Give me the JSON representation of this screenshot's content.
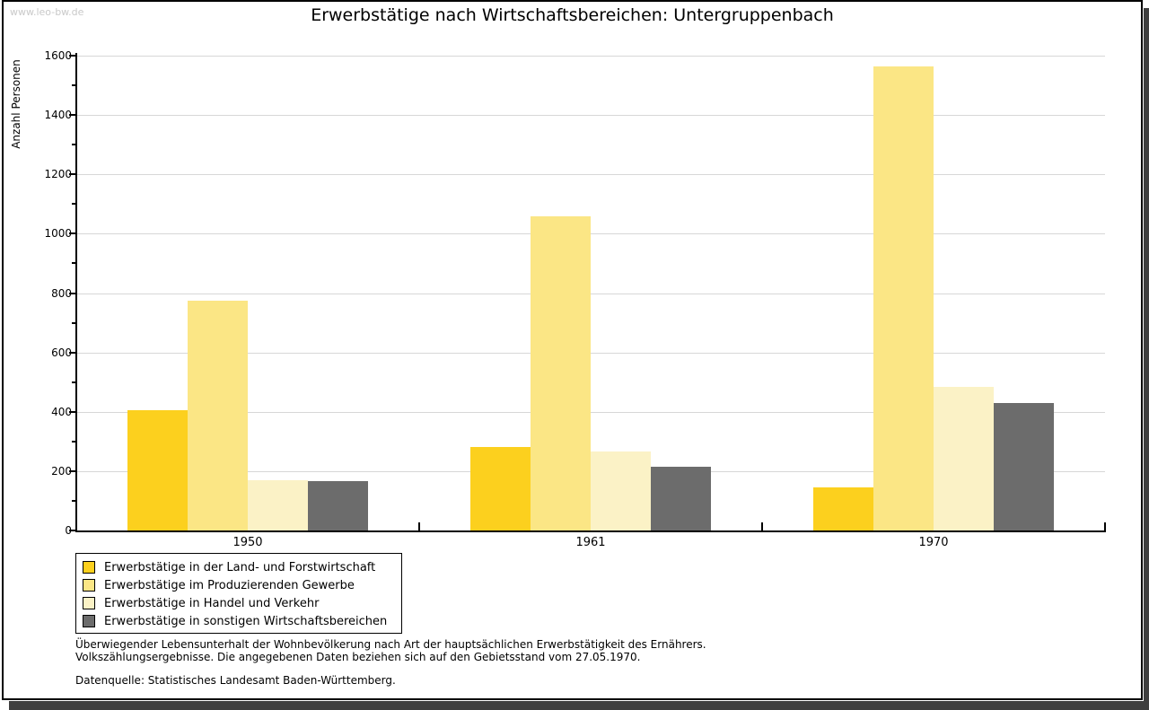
{
  "watermark": "www.leo-bw.de",
  "title": "Erwerbstätige nach Wirtschaftsbereichen: Untergruppenbach",
  "chart_data": {
    "type": "bar",
    "title": "Erwerbstätige nach Wirtschaftsbereichen: Untergruppenbach",
    "xlabel": "",
    "ylabel": "Anzahl Personen",
    "ylim": [
      0,
      1600
    ],
    "ytick_step": 200,
    "minor_tick_step": 100,
    "grid": "horizontal-major",
    "legend_position": "bottom-left",
    "categories": [
      "1950",
      "1961",
      "1970"
    ],
    "series": [
      {
        "name": "Erwerbstätige in der Land- und Forstwirtschaft",
        "color": "#FCD01E",
        "values": [
          405,
          280,
          145
        ]
      },
      {
        "name": "Erwerbstätige im Produzierenden Gewerbe",
        "color": "#FBE685",
        "values": [
          775,
          1060,
          1565
        ]
      },
      {
        "name": "Erwerbstätige in Handel und Verkehr",
        "color": "#FBF2C6",
        "values": [
          170,
          265,
          485
        ]
      },
      {
        "name": "Erwerbstätige in sonstigen Wirtschaftsbereichen",
        "color": "#6C6C6C",
        "values": [
          165,
          215,
          430
        ]
      }
    ]
  },
  "colors": {
    "gridline": "#D7D7D7",
    "axis": "#000000",
    "frame_shadow": "#3F3F3F",
    "watermark": "#C9C9C9"
  },
  "notes": {
    "line1": "Überwiegender Lebensunterhalt der Wohnbevölkerung nach Art der hauptsächlichen Erwerbstätigkeit des Ernährers.",
    "line2": "Volkszählungsergebnisse. Die angegebenen Daten beziehen sich auf den Gebietsstand vom 27.05.1970.",
    "source": "Datenquelle: Statistisches Landesamt Baden-Württemberg."
  }
}
